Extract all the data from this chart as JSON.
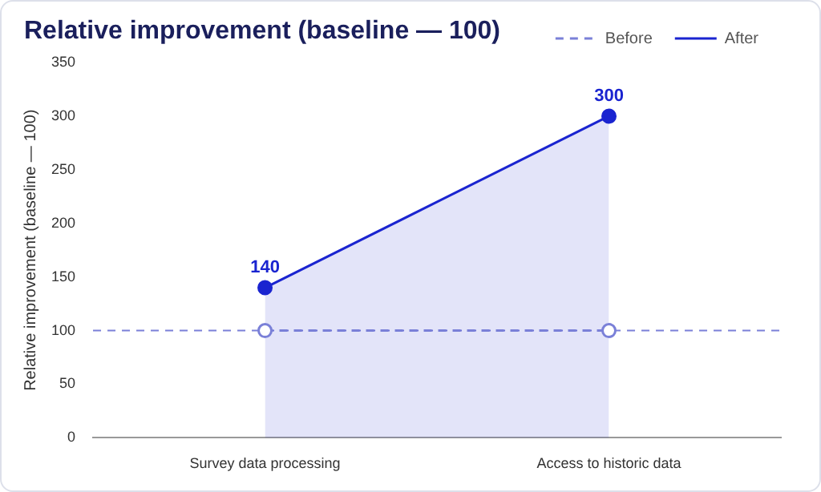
{
  "chart_data": {
    "type": "line",
    "title": "Relative improvement (baseline — 100)",
    "ylabel": "Relative improvement (baseline — 100)",
    "categories": [
      "Survey data processing",
      "Access to historic data"
    ],
    "series": [
      {
        "name": "Before",
        "color": "#7a80d8",
        "values": [
          100,
          100
        ],
        "line_style": "dashed",
        "marker": "circle"
      },
      {
        "name": "After",
        "type": "area",
        "color": "#1a24d0",
        "values": [
          140,
          300
        ],
        "value_labels": [
          "140",
          "300"
        ],
        "marker": "circle"
      }
    ],
    "ylim": [
      0,
      350
    ],
    "yticks": [
      0,
      50,
      100,
      150,
      200,
      250,
      300,
      350
    ],
    "ref_lines": [
      {
        "axis": "y",
        "value": 100,
        "color": "#7a80d8",
        "line_style": "dashed"
      }
    ],
    "grid": false,
    "legend": "top right"
  }
}
